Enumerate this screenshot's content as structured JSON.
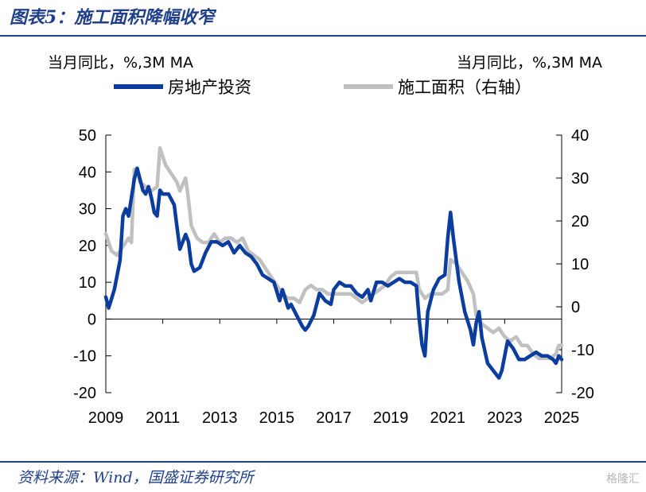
{
  "figure_title": "图表5：施工面积降幅收窄",
  "source": "资料来源：Wind，国盛证券研究所",
  "watermark": "格隆汇",
  "colors": {
    "investment": "#0a3d9e",
    "construction": "#c0c0c0",
    "accent": "#1f3f8a"
  },
  "chart_data": {
    "type": "line",
    "left_unit": "当月同比，%,3M MA",
    "right_unit": "当月同比，%,3M MA",
    "xlim": [
      2009,
      2025
    ],
    "x_ticks": [
      "2009",
      "2011",
      "2013",
      "2015",
      "2017",
      "2019",
      "2021",
      "2023",
      "2025"
    ],
    "ylim_left": [
      -20,
      50
    ],
    "y_ticks_left": [
      "50",
      "40",
      "30",
      "20",
      "10",
      "0",
      "-10",
      "-20"
    ],
    "ylim_right": [
      -20,
      40
    ],
    "y_ticks_right": [
      "40",
      "30",
      "20",
      "10",
      "0",
      "-10",
      "-20"
    ],
    "series": [
      {
        "name": "房地产投资",
        "axis": "left",
        "points": [
          [
            2009.0,
            6
          ],
          [
            2009.1,
            3
          ],
          [
            2009.3,
            8
          ],
          [
            2009.5,
            16
          ],
          [
            2009.6,
            28
          ],
          [
            2009.7,
            30
          ],
          [
            2009.8,
            28
          ],
          [
            2009.9,
            33
          ],
          [
            2010.0,
            38
          ],
          [
            2010.1,
            41
          ],
          [
            2010.2,
            38
          ],
          [
            2010.3,
            35
          ],
          [
            2010.4,
            34
          ],
          [
            2010.5,
            36
          ],
          [
            2010.6,
            33
          ],
          [
            2010.7,
            29
          ],
          [
            2010.8,
            28
          ],
          [
            2010.9,
            35
          ],
          [
            2011.0,
            34
          ],
          [
            2011.2,
            34
          ],
          [
            2011.4,
            31
          ],
          [
            2011.5,
            25
          ],
          [
            2011.6,
            19
          ],
          [
            2011.7,
            21
          ],
          [
            2011.8,
            23
          ],
          [
            2011.9,
            21
          ],
          [
            2012.0,
            15
          ],
          [
            2012.1,
            13
          ],
          [
            2012.3,
            14
          ],
          [
            2012.5,
            18
          ],
          [
            2012.7,
            21
          ],
          [
            2012.9,
            21
          ],
          [
            2013.1,
            20
          ],
          [
            2013.3,
            21
          ],
          [
            2013.5,
            18
          ],
          [
            2013.7,
            20
          ],
          [
            2013.9,
            18
          ],
          [
            2014.1,
            17
          ],
          [
            2014.3,
            15
          ],
          [
            2014.5,
            12
          ],
          [
            2014.7,
            11
          ],
          [
            2014.9,
            10
          ],
          [
            2015.1,
            5
          ],
          [
            2015.2,
            8
          ],
          [
            2015.4,
            3
          ],
          [
            2015.5,
            4
          ],
          [
            2015.7,
            1
          ],
          [
            2015.9,
            -2
          ],
          [
            2016.0,
            -3
          ],
          [
            2016.1,
            -2
          ],
          [
            2016.3,
            1
          ],
          [
            2016.5,
            7
          ],
          [
            2016.7,
            5
          ],
          [
            2016.9,
            4
          ],
          [
            2017.0,
            8
          ],
          [
            2017.2,
            10
          ],
          [
            2017.4,
            9
          ],
          [
            2017.6,
            9
          ],
          [
            2017.8,
            7
          ],
          [
            2018.0,
            6
          ],
          [
            2018.2,
            8
          ],
          [
            2018.3,
            5
          ],
          [
            2018.5,
            10
          ],
          [
            2018.7,
            10
          ],
          [
            2018.9,
            9
          ],
          [
            2019.1,
            10
          ],
          [
            2019.3,
            11
          ],
          [
            2019.5,
            10
          ],
          [
            2019.7,
            10
          ],
          [
            2019.9,
            9
          ],
          [
            2020.0,
            0
          ],
          [
            2020.1,
            -7
          ],
          [
            2020.2,
            -10
          ],
          [
            2020.3,
            2
          ],
          [
            2020.5,
            8
          ],
          [
            2020.7,
            11
          ],
          [
            2020.9,
            12
          ],
          [
            2021.0,
            22
          ],
          [
            2021.1,
            29
          ],
          [
            2021.2,
            22
          ],
          [
            2021.4,
            10
          ],
          [
            2021.6,
            2
          ],
          [
            2021.8,
            -3
          ],
          [
            2021.9,
            -7
          ],
          [
            2022.0,
            -1
          ],
          [
            2022.1,
            2
          ],
          [
            2022.2,
            -5
          ],
          [
            2022.4,
            -12
          ],
          [
            2022.6,
            -14
          ],
          [
            2022.8,
            -16
          ],
          [
            2022.9,
            -14
          ],
          [
            2023.0,
            -10
          ],
          [
            2023.1,
            -6
          ],
          [
            2023.3,
            -8
          ],
          [
            2023.5,
            -11
          ],
          [
            2023.7,
            -11
          ],
          [
            2023.9,
            -10
          ],
          [
            2024.1,
            -9
          ],
          [
            2024.3,
            -10
          ],
          [
            2024.5,
            -10
          ],
          [
            2024.7,
            -11
          ],
          [
            2024.8,
            -12
          ],
          [
            2024.9,
            -10
          ],
          [
            2025.0,
            -11
          ]
        ]
      },
      {
        "name": "施工面积（右轴）",
        "axis": "right",
        "points": [
          [
            2009.0,
            17
          ],
          [
            2009.2,
            13
          ],
          [
            2009.4,
            12
          ],
          [
            2009.6,
            14
          ],
          [
            2009.8,
            16
          ],
          [
            2009.9,
            15
          ],
          [
            2010.0,
            32
          ],
          [
            2010.1,
            32
          ],
          [
            2010.2,
            29
          ],
          [
            2010.4,
            28
          ],
          [
            2010.6,
            27
          ],
          [
            2010.8,
            28
          ],
          [
            2010.9,
            37
          ],
          [
            2011.1,
            33
          ],
          [
            2011.3,
            31
          ],
          [
            2011.5,
            29
          ],
          [
            2011.6,
            27
          ],
          [
            2011.8,
            30
          ],
          [
            2011.9,
            25
          ],
          [
            2012.0,
            19
          ],
          [
            2012.2,
            16
          ],
          [
            2012.4,
            15
          ],
          [
            2012.6,
            15
          ],
          [
            2012.8,
            17
          ],
          [
            2013.0,
            15
          ],
          [
            2013.2,
            16
          ],
          [
            2013.4,
            16
          ],
          [
            2013.6,
            15
          ],
          [
            2013.8,
            16
          ],
          [
            2014.0,
            13
          ],
          [
            2014.2,
            12
          ],
          [
            2014.4,
            11
          ],
          [
            2014.6,
            9
          ],
          [
            2014.8,
            7
          ],
          [
            2015.0,
            5
          ],
          [
            2015.2,
            3
          ],
          [
            2015.4,
            2
          ],
          [
            2015.6,
            2
          ],
          [
            2015.8,
            1
          ],
          [
            2016.0,
            4
          ],
          [
            2016.2,
            5
          ],
          [
            2016.4,
            4
          ],
          [
            2016.6,
            4
          ],
          [
            2016.8,
            3
          ],
          [
            2017.0,
            3
          ],
          [
            2017.2,
            3
          ],
          [
            2017.4,
            3
          ],
          [
            2017.6,
            3
          ],
          [
            2017.8,
            2
          ],
          [
            2018.0,
            1
          ],
          [
            2018.2,
            2
          ],
          [
            2018.4,
            3
          ],
          [
            2018.6,
            4
          ],
          [
            2018.8,
            5
          ],
          [
            2019.0,
            7
          ],
          [
            2019.2,
            8
          ],
          [
            2019.4,
            8
          ],
          [
            2019.6,
            8
          ],
          [
            2019.8,
            8
          ],
          [
            2019.9,
            8
          ],
          [
            2020.0,
            4
          ],
          [
            2020.2,
            2
          ],
          [
            2020.4,
            3
          ],
          [
            2020.6,
            3
          ],
          [
            2020.8,
            3
          ],
          [
            2021.0,
            4
          ],
          [
            2021.1,
            11
          ],
          [
            2021.3,
            10
          ],
          [
            2021.5,
            8
          ],
          [
            2021.7,
            6
          ],
          [
            2021.9,
            3
          ],
          [
            2022.0,
            -2
          ],
          [
            2022.2,
            -4
          ],
          [
            2022.4,
            -5
          ],
          [
            2022.6,
            -6
          ],
          [
            2022.8,
            -5
          ],
          [
            2023.0,
            -7
          ],
          [
            2023.2,
            -8
          ],
          [
            2023.4,
            -7
          ],
          [
            2023.6,
            -9
          ],
          [
            2023.8,
            -9
          ],
          [
            2024.0,
            -11
          ],
          [
            2024.2,
            -12
          ],
          [
            2024.4,
            -12
          ],
          [
            2024.6,
            -12
          ],
          [
            2024.8,
            -11
          ],
          [
            2024.9,
            -9
          ],
          [
            2025.0,
            -9
          ]
        ]
      }
    ]
  }
}
